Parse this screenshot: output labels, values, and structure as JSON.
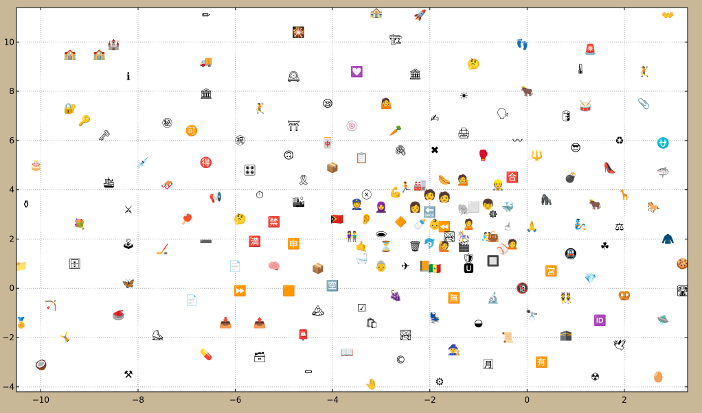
{
  "chart_data": {
    "type": "scatter",
    "title": "",
    "xlabel": "",
    "ylabel": "",
    "xlim": [
      -10.5,
      3.3
    ],
    "ylim": [
      -4.2,
      11.4
    ],
    "grid": true,
    "xticks": [
      "−10",
      "−8",
      "−6",
      "−4",
      "−2",
      "0",
      "2"
    ],
    "xtick_values": [
      -10,
      -8,
      -6,
      -4,
      -2,
      0,
      2
    ],
    "yticks": [
      "−4",
      "−2",
      "0",
      "2",
      "4",
      "6",
      "8",
      "10"
    ],
    "ytick_values": [
      -4,
      -2,
      0,
      2,
      4,
      6,
      8,
      10
    ],
    "colors": {
      "background": "#c8b898",
      "plot": "#ffffff",
      "grid": "#b0b0b0",
      "axis": "#000000"
    },
    "points": [
      {
        "x": -6.6,
        "y": 11.1,
        "glyph": "✏"
      },
      {
        "x": -3.1,
        "y": 11.2,
        "glyph": "🏤"
      },
      {
        "x": -2.2,
        "y": 11.1,
        "glyph": "🚀"
      },
      {
        "x": 2.9,
        "y": 11.1,
        "glyph": "👐"
      },
      {
        "x": -4.7,
        "y": 10.4,
        "glyph": "🎇"
      },
      {
        "x": -8.5,
        "y": 9.9,
        "glyph": "🏰"
      },
      {
        "x": -2.7,
        "y": 10.1,
        "glyph": "🏗"
      },
      {
        "x": -0.1,
        "y": 9.9,
        "glyph": "👣"
      },
      {
        "x": 1.3,
        "y": 9.7,
        "glyph": "🚨"
      },
      {
        "x": -9.4,
        "y": 9.5,
        "glyph": "🏫"
      },
      {
        "x": -8.8,
        "y": 9.5,
        "glyph": "🏫"
      },
      {
        "x": -6.6,
        "y": 9.2,
        "glyph": "🚚"
      },
      {
        "x": -1.1,
        "y": 9.1,
        "glyph": "🤔"
      },
      {
        "x": 1.1,
        "y": 8.9,
        "glyph": "🌡"
      },
      {
        "x": 2.4,
        "y": 8.8,
        "glyph": "🤾"
      },
      {
        "x": -8.2,
        "y": 8.6,
        "glyph": "ℹ"
      },
      {
        "x": -4.8,
        "y": 8.6,
        "glyph": "🕰"
      },
      {
        "x": -3.5,
        "y": 8.8,
        "glyph": "💟"
      },
      {
        "x": -2.3,
        "y": 8.7,
        "glyph": "🏛"
      },
      {
        "x": -6.6,
        "y": 7.9,
        "glyph": "🏛"
      },
      {
        "x": -1.3,
        "y": 7.8,
        "glyph": "☀"
      },
      {
        "x": 0.0,
        "y": 8.0,
        "glyph": "🐂"
      },
      {
        "x": -9.4,
        "y": 7.3,
        "glyph": "🔐"
      },
      {
        "x": -5.5,
        "y": 7.3,
        "glyph": "🤾"
      },
      {
        "x": -4.1,
        "y": 7.5,
        "glyph": "😪"
      },
      {
        "x": -2.9,
        "y": 7.5,
        "glyph": "🤷"
      },
      {
        "x": 1.2,
        "y": 7.4,
        "glyph": "🥁"
      },
      {
        "x": 2.4,
        "y": 7.5,
        "glyph": "📎"
      },
      {
        "x": -9.1,
        "y": 6.8,
        "glyph": "🔑"
      },
      {
        "x": -7.4,
        "y": 6.7,
        "glyph": "㊙"
      },
      {
        "x": -1.9,
        "y": 6.9,
        "glyph": "✍"
      },
      {
        "x": -0.5,
        "y": 7.1,
        "glyph": "🗣"
      },
      {
        "x": 0.8,
        "y": 7.0,
        "glyph": "🛢"
      },
      {
        "x": -6.9,
        "y": 6.4,
        "glyph": "🉑"
      },
      {
        "x": -4.8,
        "y": 6.6,
        "glyph": "⛩"
      },
      {
        "x": -3.6,
        "y": 6.6,
        "glyph": "🍥"
      },
      {
        "x": -2.7,
        "y": 6.4,
        "glyph": "🥕"
      },
      {
        "x": -1.3,
        "y": 6.3,
        "glyph": "🖨"
      },
      {
        "x": -8.7,
        "y": 6.2,
        "glyph": "🗝"
      },
      {
        "x": -5.9,
        "y": 6.0,
        "glyph": "㊗"
      },
      {
        "x": -4.1,
        "y": 5.9,
        "glyph": "🀄"
      },
      {
        "x": -0.2,
        "y": 6.0,
        "glyph": "〰"
      },
      {
        "x": 1.9,
        "y": 6.0,
        "glyph": "♻"
      },
      {
        "x": 2.8,
        "y": 5.9,
        "glyph": "⛎"
      },
      {
        "x": 1.0,
        "y": 5.7,
        "glyph": "😎"
      },
      {
        "x": -2.6,
        "y": 5.6,
        "glyph": "🖇"
      },
      {
        "x": -1.9,
        "y": 5.6,
        "glyph": "✖"
      },
      {
        "x": -10.1,
        "y": 5.0,
        "glyph": "🎂"
      },
      {
        "x": -7.9,
        "y": 5.1,
        "glyph": "💉"
      },
      {
        "x": -6.6,
        "y": 5.1,
        "glyph": "🉐"
      },
      {
        "x": -4.9,
        "y": 5.4,
        "glyph": "🙃"
      },
      {
        "x": -3.4,
        "y": 5.3,
        "glyph": "📋"
      },
      {
        "x": -0.9,
        "y": 5.4,
        "glyph": "🥊"
      },
      {
        "x": 0.2,
        "y": 5.4,
        "glyph": "🔱"
      },
      {
        "x": -5.7,
        "y": 4.8,
        "glyph": "🎛"
      },
      {
        "x": -4.0,
        "y": 4.9,
        "glyph": "📦"
      },
      {
        "x": 1.7,
        "y": 4.9,
        "glyph": "👠"
      },
      {
        "x": -4.6,
        "y": 4.4,
        "glyph": "🎗"
      },
      {
        "x": -1.7,
        "y": 4.4,
        "glyph": "🌭"
      },
      {
        "x": -1.3,
        "y": 4.4,
        "glyph": "💁"
      },
      {
        "x": -0.3,
        "y": 4.5,
        "glyph": "🈴"
      },
      {
        "x": 0.9,
        "y": 4.5,
        "glyph": "💣"
      },
      {
        "x": 2.8,
        "y": 4.7,
        "glyph": "🦈"
      },
      {
        "x": -8.6,
        "y": 4.3,
        "glyph": "🛳"
      },
      {
        "x": -7.4,
        "y": 4.2,
        "glyph": "🛷"
      },
      {
        "x": -2.5,
        "y": 4.1,
        "glyph": "🏃"
      },
      {
        "x": -2.2,
        "y": 4.2,
        "glyph": "🏭"
      },
      {
        "x": -0.6,
        "y": 4.2,
        "glyph": "👷"
      },
      {
        "x": 2.0,
        "y": 3.8,
        "glyph": "🦒"
      },
      {
        "x": -6.4,
        "y": 3.7,
        "glyph": "📢"
      },
      {
        "x": -5.5,
        "y": 3.8,
        "glyph": "⏱"
      },
      {
        "x": -3.3,
        "y": 3.8,
        "glyph": "ⓧ"
      },
      {
        "x": -2.7,
        "y": 3.9,
        "glyph": "💪"
      },
      {
        "x": -2.0,
        "y": 3.8,
        "glyph": "🧑"
      },
      {
        "x": -1.7,
        "y": 3.7,
        "glyph": "🧑"
      },
      {
        "x": -10.3,
        "y": 3.4,
        "glyph": "⚱"
      },
      {
        "x": -8.2,
        "y": 3.2,
        "glyph": "⚔"
      },
      {
        "x": -4.7,
        "y": 3.5,
        "glyph": "🏙"
      },
      {
        "x": -3.5,
        "y": 3.4,
        "glyph": "👮"
      },
      {
        "x": -3.0,
        "y": 3.3,
        "glyph": "🧕"
      },
      {
        "x": -2.3,
        "y": 3.3,
        "glyph": "👩"
      },
      {
        "x": -1.3,
        "y": 3.2,
        "glyph": "🐘"
      },
      {
        "x": -1.1,
        "y": 3.3,
        "glyph": "⬜"
      },
      {
        "x": -0.8,
        "y": 3.4,
        "glyph": "👦"
      },
      {
        "x": -0.4,
        "y": 3.3,
        "glyph": "🐳"
      },
      {
        "x": 0.4,
        "y": 3.6,
        "glyph": "🦍"
      },
      {
        "x": 1.4,
        "y": 3.4,
        "glyph": "🐂"
      },
      {
        "x": 2.6,
        "y": 3.3,
        "glyph": "🐎"
      },
      {
        "x": -2.0,
        "y": 3.1,
        "glyph": "🔙"
      },
      {
        "x": -0.7,
        "y": 3.0,
        "glyph": "☸"
      },
      {
        "x": -9.2,
        "y": 2.6,
        "glyph": "💐"
      },
      {
        "x": -7.0,
        "y": 2.8,
        "glyph": "🏓"
      },
      {
        "x": -5.9,
        "y": 2.8,
        "glyph": "🤔"
      },
      {
        "x": -5.2,
        "y": 2.7,
        "glyph": "🈲"
      },
      {
        "x": -3.9,
        "y": 2.8,
        "glyph": "🇹🇱"
      },
      {
        "x": -3.3,
        "y": 2.8,
        "glyph": "👂"
      },
      {
        "x": -2.6,
        "y": 2.7,
        "glyph": "🔶"
      },
      {
        "x": -2.2,
        "y": 2.6,
        "glyph": "🍼"
      },
      {
        "x": -1.9,
        "y": 2.6,
        "glyph": "👶"
      },
      {
        "x": -1.7,
        "y": 2.5,
        "glyph": "⏪"
      },
      {
        "x": -1.2,
        "y": 2.6,
        "glyph": "🙎"
      },
      {
        "x": -0.4,
        "y": 2.5,
        "glyph": "☝"
      },
      {
        "x": 0.1,
        "y": 2.5,
        "glyph": "🙏"
      },
      {
        "x": 1.1,
        "y": 2.6,
        "glyph": "🧞"
      },
      {
        "x": 1.9,
        "y": 2.5,
        "glyph": "⚖"
      },
      {
        "x": -3.6,
        "y": 2.1,
        "glyph": "👫"
      },
      {
        "x": -3.0,
        "y": 2.2,
        "glyph": "🕳"
      },
      {
        "x": -1.6,
        "y": 2.1,
        "glyph": "🏞"
      },
      {
        "x": -1.3,
        "y": 2.1,
        "glyph": "🎠"
      },
      {
        "x": -0.8,
        "y": 2.1,
        "glyph": "🤼"
      },
      {
        "x": -0.7,
        "y": 2.1,
        "glyph": "👜"
      },
      {
        "x": 2.9,
        "y": 2.0,
        "glyph": "🧥"
      },
      {
        "x": -8.2,
        "y": 1.8,
        "glyph": "🕹"
      },
      {
        "x": -6.6,
        "y": 1.9,
        "glyph": "➖"
      },
      {
        "x": -5.6,
        "y": 1.9,
        "glyph": "🈵"
      },
      {
        "x": -4.8,
        "y": 1.8,
        "glyph": "🈸"
      },
      {
        "x": -3.4,
        "y": 1.7,
        "glyph": "🤙"
      },
      {
        "x": -2.9,
        "y": 1.7,
        "glyph": "⏳"
      },
      {
        "x": -2.3,
        "y": 1.7,
        "glyph": "🗑"
      },
      {
        "x": -2.0,
        "y": 1.8,
        "glyph": "🐬"
      },
      {
        "x": -1.7,
        "y": 1.7,
        "glyph": "🙋"
      },
      {
        "x": -1.3,
        "y": 1.7,
        "glyph": "🎬"
      },
      {
        "x": -0.5,
        "y": 1.6,
        "glyph": "⚾"
      },
      {
        "x": -0.3,
        "y": 1.8,
        "glyph": "🙍"
      },
      {
        "x": -7.5,
        "y": 1.6,
        "glyph": "🏒"
      },
      {
        "x": 0.9,
        "y": 1.4,
        "glyph": "🚇"
      },
      {
        "x": 1.6,
        "y": 1.7,
        "glyph": "☘"
      },
      {
        "x": -3.4,
        "y": 1.2,
        "glyph": "🛁"
      },
      {
        "x": -1.2,
        "y": 1.2,
        "glyph": "🛡"
      },
      {
        "x": -0.7,
        "y": 1.1,
        "glyph": "🔲"
      },
      {
        "x": -10.4,
        "y": 0.9,
        "glyph": "📁"
      },
      {
        "x": -9.3,
        "y": 1.0,
        "glyph": "🗄"
      },
      {
        "x": -6.0,
        "y": 0.9,
        "glyph": "📄"
      },
      {
        "x": -5.2,
        "y": 0.9,
        "glyph": "🧠"
      },
      {
        "x": -4.3,
        "y": 0.8,
        "glyph": "📦"
      },
      {
        "x": -3.0,
        "y": 0.9,
        "glyph": "👵"
      },
      {
        "x": -2.5,
        "y": 0.9,
        "glyph": "✈"
      },
      {
        "x": -2.1,
        "y": 0.9,
        "glyph": "📙"
      },
      {
        "x": -1.9,
        "y": 0.8,
        "glyph": "🇸🇳"
      },
      {
        "x": -1.2,
        "y": 0.8,
        "glyph": "🆄"
      },
      {
        "x": 1.3,
        "y": 0.4,
        "glyph": "💎"
      },
      {
        "x": 3.2,
        "y": 1.0,
        "glyph": "🍪"
      },
      {
        "x": -8.2,
        "y": 0.2,
        "glyph": "🦋"
      },
      {
        "x": -4.0,
        "y": 0.1,
        "glyph": "🈳"
      },
      {
        "x": -5.9,
        "y": -0.1,
        "glyph": "⏩"
      },
      {
        "x": -4.9,
        "y": -0.1,
        "glyph": "🟧"
      },
      {
        "x": -0.1,
        "y": 0.0,
        "glyph": "🔞"
      },
      {
        "x": 0.5,
        "y": 0.7,
        "glyph": "🈺"
      },
      {
        "x": 3.2,
        "y": -0.1,
        "glyph": "🛣"
      },
      {
        "x": -2.7,
        "y": -0.3,
        "glyph": "🍇"
      },
      {
        "x": -1.5,
        "y": -0.4,
        "glyph": "🈚"
      },
      {
        "x": -0.7,
        "y": -0.4,
        "glyph": "🔬"
      },
      {
        "x": 0.8,
        "y": -0.4,
        "glyph": "👯"
      },
      {
        "x": 2.0,
        "y": -0.3,
        "glyph": "🥨"
      },
      {
        "x": -9.8,
        "y": -0.7,
        "glyph": "🏹"
      },
      {
        "x": -6.9,
        "y": -0.5,
        "glyph": "📄"
      },
      {
        "x": -3.4,
        "y": -0.8,
        "glyph": "☑"
      },
      {
        "x": -4.3,
        "y": -0.9,
        "glyph": "🏔"
      },
      {
        "x": -8.4,
        "y": -1.1,
        "glyph": "🥌"
      },
      {
        "x": -6.2,
        "y": -1.4,
        "glyph": "📥"
      },
      {
        "x": -5.5,
        "y": -1.4,
        "glyph": "📤"
      },
      {
        "x": -3.2,
        "y": -1.4,
        "glyph": "🛍"
      },
      {
        "x": -1.9,
        "y": -1.2,
        "glyph": "💺"
      },
      {
        "x": -1.0,
        "y": -1.4,
        "glyph": "◒"
      },
      {
        "x": 0.1,
        "y": -1.1,
        "glyph": "🔭"
      },
      {
        "x": 1.5,
        "y": -1.3,
        "glyph": "🆔"
      },
      {
        "x": 2.8,
        "y": -1.3,
        "glyph": "🛸"
      },
      {
        "x": -10.4,
        "y": -1.4,
        "glyph": "🏅"
      },
      {
        "x": -9.5,
        "y": -2.0,
        "glyph": "🤸"
      },
      {
        "x": -7.6,
        "y": -1.9,
        "glyph": "⛸"
      },
      {
        "x": -4.6,
        "y": -1.9,
        "glyph": "📮"
      },
      {
        "x": -2.5,
        "y": -1.9,
        "glyph": "🏞"
      },
      {
        "x": -0.4,
        "y": -2.0,
        "glyph": "📜"
      },
      {
        "x": 0.8,
        "y": -1.9,
        "glyph": "🕋"
      },
      {
        "x": 1.9,
        "y": -2.3,
        "glyph": "🕊"
      },
      {
        "x": -1.5,
        "y": -2.5,
        "glyph": "🧙"
      },
      {
        "x": -6.6,
        "y": -2.7,
        "glyph": "💊"
      },
      {
        "x": -5.5,
        "y": -2.8,
        "glyph": "🗃"
      },
      {
        "x": -3.7,
        "y": -2.6,
        "glyph": "📖"
      },
      {
        "x": -2.6,
        "y": -2.9,
        "glyph": "©"
      },
      {
        "x": -0.8,
        "y": -3.1,
        "glyph": "🈷"
      },
      {
        "x": 0.3,
        "y": -3.0,
        "glyph": "🈶"
      },
      {
        "x": -10.0,
        "y": -3.1,
        "glyph": "🥥"
      },
      {
        "x": -8.2,
        "y": -3.5,
        "glyph": "⚒"
      },
      {
        "x": -4.5,
        "y": -3.4,
        "glyph": "⚰"
      },
      {
        "x": 1.4,
        "y": -3.6,
        "glyph": "☢"
      },
      {
        "x": 2.7,
        "y": -3.6,
        "glyph": "🥚"
      },
      {
        "x": -3.2,
        "y": -3.9,
        "glyph": "🤚"
      },
      {
        "x": -1.8,
        "y": -3.8,
        "glyph": "⚙"
      }
    ]
  }
}
